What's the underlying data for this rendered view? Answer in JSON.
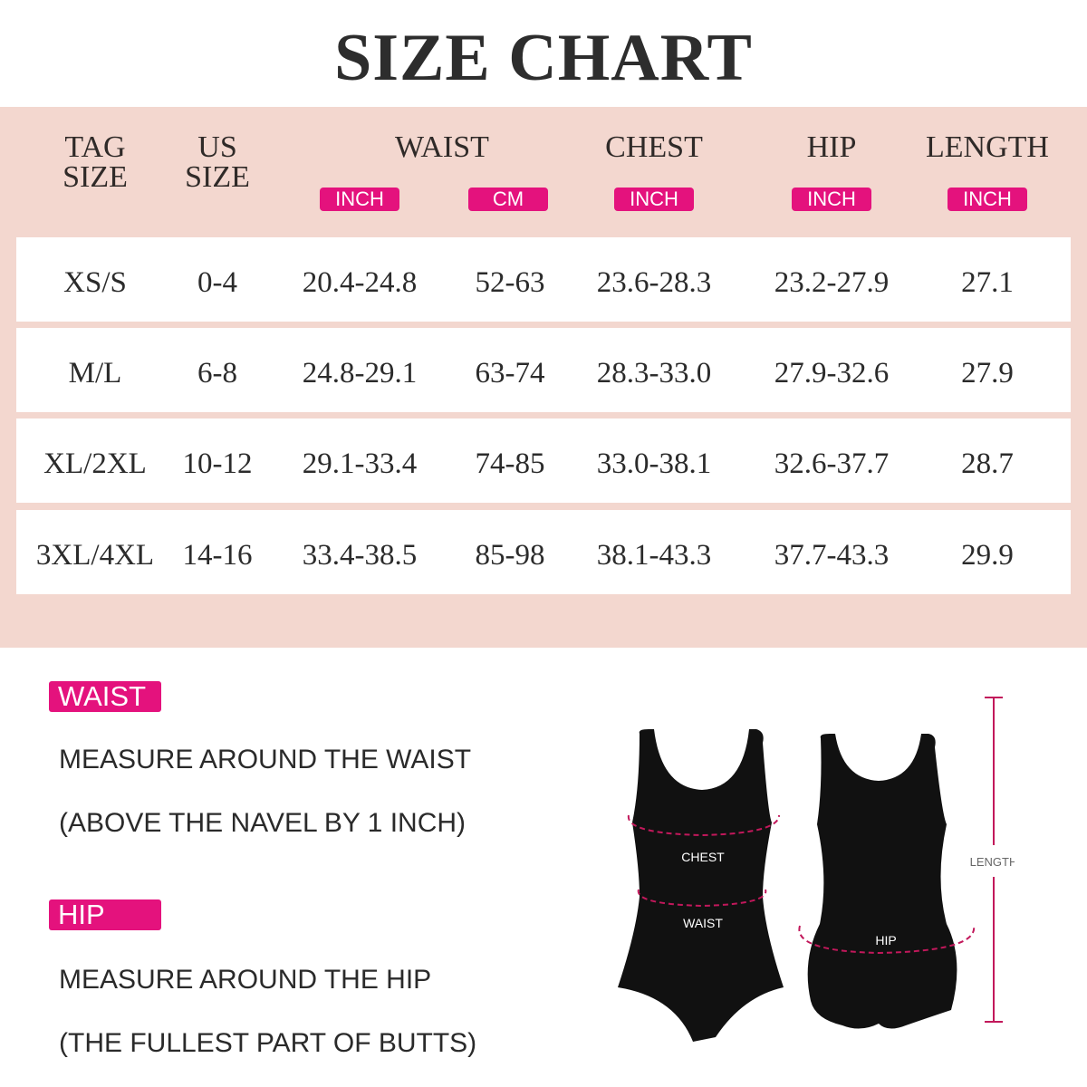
{
  "title": "SIZE CHART",
  "table": {
    "headers": [
      {
        "label": "TAG\nSIZE",
        "l1": "TAG",
        "l2": "SIZE"
      },
      {
        "l1": "US",
        "l2": "SIZE"
      },
      {
        "l1": "WAIST"
      },
      {
        "l1": "CHEST"
      },
      {
        "l1": "HIP"
      },
      {
        "l1": "LENGTH"
      }
    ],
    "units": [
      "INCH",
      "CM",
      "INCH",
      "INCH",
      "INCH"
    ],
    "rows": [
      [
        "XS/S",
        "0-4",
        "20.4-24.8",
        "52-63",
        "23.6-28.3",
        "23.2-27.9",
        "27.1"
      ],
      [
        "M/L",
        "6-8",
        "24.8-29.1",
        "63-74",
        "28.3-33.0",
        "27.9-32.6",
        "27.9"
      ],
      [
        "XL/2XL",
        "10-12",
        "29.1-33.4",
        "74-85",
        "33.0-38.1",
        "32.6-37.7",
        "28.7"
      ],
      [
        "3XL/4XL",
        "14-16",
        "33.4-38.5",
        "85-98",
        "38.1-43.3",
        "37.7-43.3",
        "29.9"
      ]
    ]
  },
  "guide": {
    "waist": {
      "label": "WAIST",
      "line1": "MEASURE AROUND THE WAIST",
      "line2": "(ABOVE THE NAVEL BY 1 INCH)"
    },
    "hip": {
      "label": "HIP",
      "line1": "MEASURE AROUND THE HIP",
      "line2": "(THE FULLEST PART OF BUTTS)"
    }
  },
  "figure": {
    "chest": "CHEST",
    "waist": "WAIST",
    "hip": "HIP",
    "length": "LENGTH"
  },
  "colors": {
    "accent": "#e4127d",
    "panel": "#f3d7cf",
    "garment": "#111111"
  }
}
